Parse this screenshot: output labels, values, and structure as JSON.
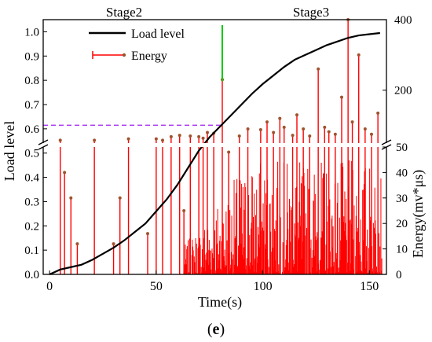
{
  "chart_data": {
    "type": "line",
    "panel_label": "(e)",
    "panel_letter": "e",
    "xlabel": "Time(s)",
    "ylabel_left": "Load level",
    "ylabel_right": "Energy(mv*μs)",
    "xlim": [
      -3,
      158
    ],
    "x_ticks": [
      0,
      50,
      100,
      150
    ],
    "left_ylim": [
      0,
      1.05
    ],
    "left_ticks": [
      "0.0",
      "0.1",
      "0.2",
      "0.3",
      "0.4",
      "0.5",
      "0.6",
      "0.7",
      "0.8",
      "0.9",
      "1.0"
    ],
    "right_ticks_lower": [
      0,
      10,
      20,
      30,
      40,
      50
    ],
    "right_ticks_upper": [
      200,
      400
    ],
    "right_axis_break": true,
    "stages": [
      {
        "label": "Stage2"
      },
      {
        "label": "Stage3"
      }
    ],
    "stage_boundary_x": 81,
    "threshold_load_level": 0.615,
    "legend": {
      "placement": "top-left",
      "entries": [
        {
          "label": "Load level",
          "series": "load_level"
        },
        {
          "label": "Energy",
          "series": "energy"
        }
      ]
    },
    "series": [
      {
        "name": "Load level",
        "type": "line",
        "color": "#000000",
        "x": [
          0,
          5,
          10,
          15,
          20,
          25,
          30,
          35,
          40,
          45,
          50,
          55,
          60,
          65,
          70,
          75,
          80,
          85,
          90,
          95,
          100,
          105,
          110,
          115,
          120,
          125,
          130,
          135,
          140,
          145,
          150,
          155
        ],
        "y": [
          0.0,
          0.02,
          0.03,
          0.04,
          0.06,
          0.085,
          0.11,
          0.14,
          0.175,
          0.21,
          0.26,
          0.31,
          0.37,
          0.44,
          0.51,
          0.565,
          0.61,
          0.655,
          0.7,
          0.745,
          0.785,
          0.82,
          0.855,
          0.885,
          0.905,
          0.925,
          0.945,
          0.96,
          0.975,
          0.985,
          0.99,
          0.995
        ]
      },
      {
        "name": "Energy",
        "type": "stem",
        "color": "#ff0000",
        "marker_color": "#a0522d",
        "annotated_peaks": {
          "x": [
            5,
            7,
            10,
            13,
            21,
            30,
            33,
            37,
            46,
            50,
            53,
            57,
            61,
            63,
            66,
            70,
            72,
            74,
            77,
            81,
            84,
            89,
            93,
            99,
            102,
            105,
            108,
            110,
            114,
            116,
            119,
            122,
            126,
            129,
            131,
            134,
            137,
            140,
            142,
            145,
            148,
            151,
            154
          ],
          "y": [
            58,
            40,
            30,
            12,
            58,
            12,
            30,
            62,
            16,
            62,
            58,
            68,
            72,
            25,
            70,
            68,
            64,
            80,
            78,
            230,
            48,
            70,
            90,
            88,
            110,
            80,
            120,
            95,
            72,
            130,
            90,
            70,
            260,
            95,
            82,
            75,
            180,
            420,
            110,
            300,
            90,
            75,
            135
          ]
        },
        "dense_region": {
          "x_start": 63,
          "x_end": 156,
          "typical_max": 45
        }
      }
    ]
  }
}
